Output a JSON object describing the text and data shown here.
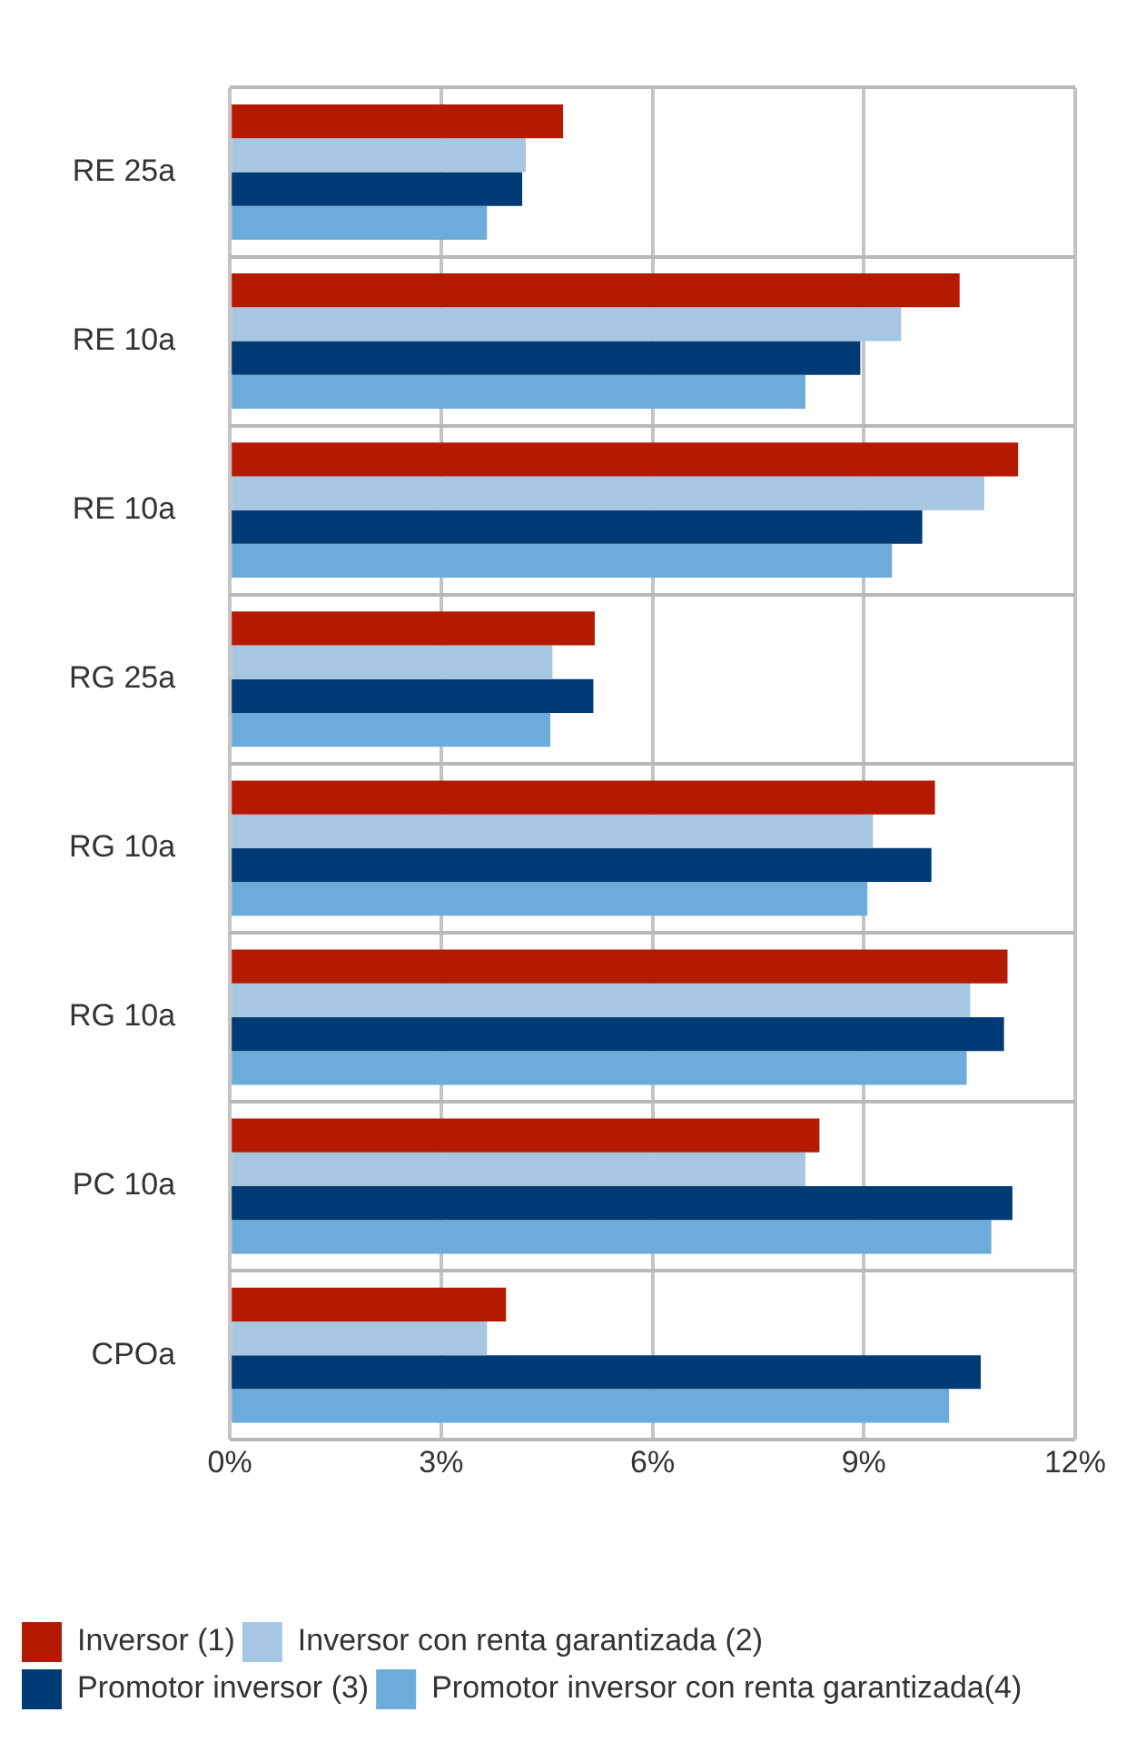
{
  "chart_data": {
    "type": "bar",
    "orientation": "horizontal",
    "categories": [
      "RE 25a",
      "RE 10a",
      "RE 10a",
      "RG 25a",
      "RG 10a",
      "RG 10a",
      "PC 10a",
      "CPOa"
    ],
    "series": [
      {
        "name": "Inversor (1)",
        "color": "#b41a00",
        "values": [
          4.73,
          10.36,
          11.19,
          5.18,
          10.01,
          11.04,
          8.37,
          3.92
        ]
      },
      {
        "name": "Inversor con renta garantizada (2)",
        "color": "#a6c6e1",
        "values": [
          4.2,
          9.53,
          10.71,
          4.58,
          9.13,
          10.51,
          8.17,
          3.65
        ]
      },
      {
        "name": "Promotor inversor (3)",
        "color": "#003b76",
        "values": [
          4.15,
          8.95,
          9.83,
          5.16,
          9.96,
          10.99,
          11.11,
          10.66
        ]
      },
      {
        "name": "Promotor inversor con renta garantizada(4)",
        "color": "#6dabdb",
        "values": [
          3.65,
          8.17,
          9.4,
          4.55,
          9.05,
          10.46,
          10.81,
          10.21
        ]
      }
    ],
    "xlim": [
      0,
      12
    ],
    "xticks": [
      {
        "value": 0,
        "label": "0%"
      },
      {
        "value": 3,
        "label": "3%"
      },
      {
        "value": 6,
        "label": "6%"
      },
      {
        "value": 9,
        "label": "9%"
      },
      {
        "value": 12,
        "label": "12%"
      }
    ],
    "grid": true,
    "legend": "bottom"
  }
}
